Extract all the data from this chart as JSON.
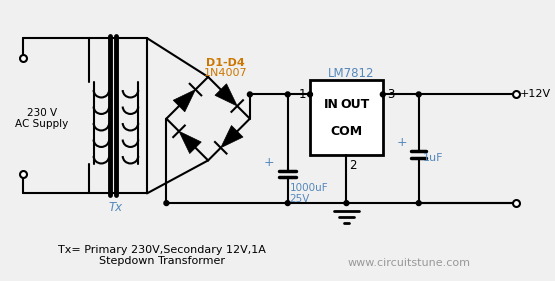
{
  "bg_color": "#f0f0f0",
  "line_color": "#000000",
  "blue_color": "#5588bb",
  "orange_color": "#cc7700",
  "gray_color": "#999999",
  "title_text": "Tx= Primary 230V,Secondary 12V,1A\nStepdown Transformer",
  "website_text": "www.circuitstune.com",
  "ac_label": "230 V\nAC Supply",
  "tx_label": "Tx",
  "diode_label1": "D1-D4",
  "diode_label2": "1N4007",
  "ic_label": "LM7812",
  "cap1_label1": "1000uF",
  "cap1_label2": "25V",
  "cap2_label": "1uF",
  "out_label": "+12V",
  "pin1": "1",
  "pin2": "2",
  "pin3": "3",
  "in_text": "IN",
  "out_text": "OUT",
  "com_text": "COM",
  "plus1": "+",
  "plus2": "+"
}
